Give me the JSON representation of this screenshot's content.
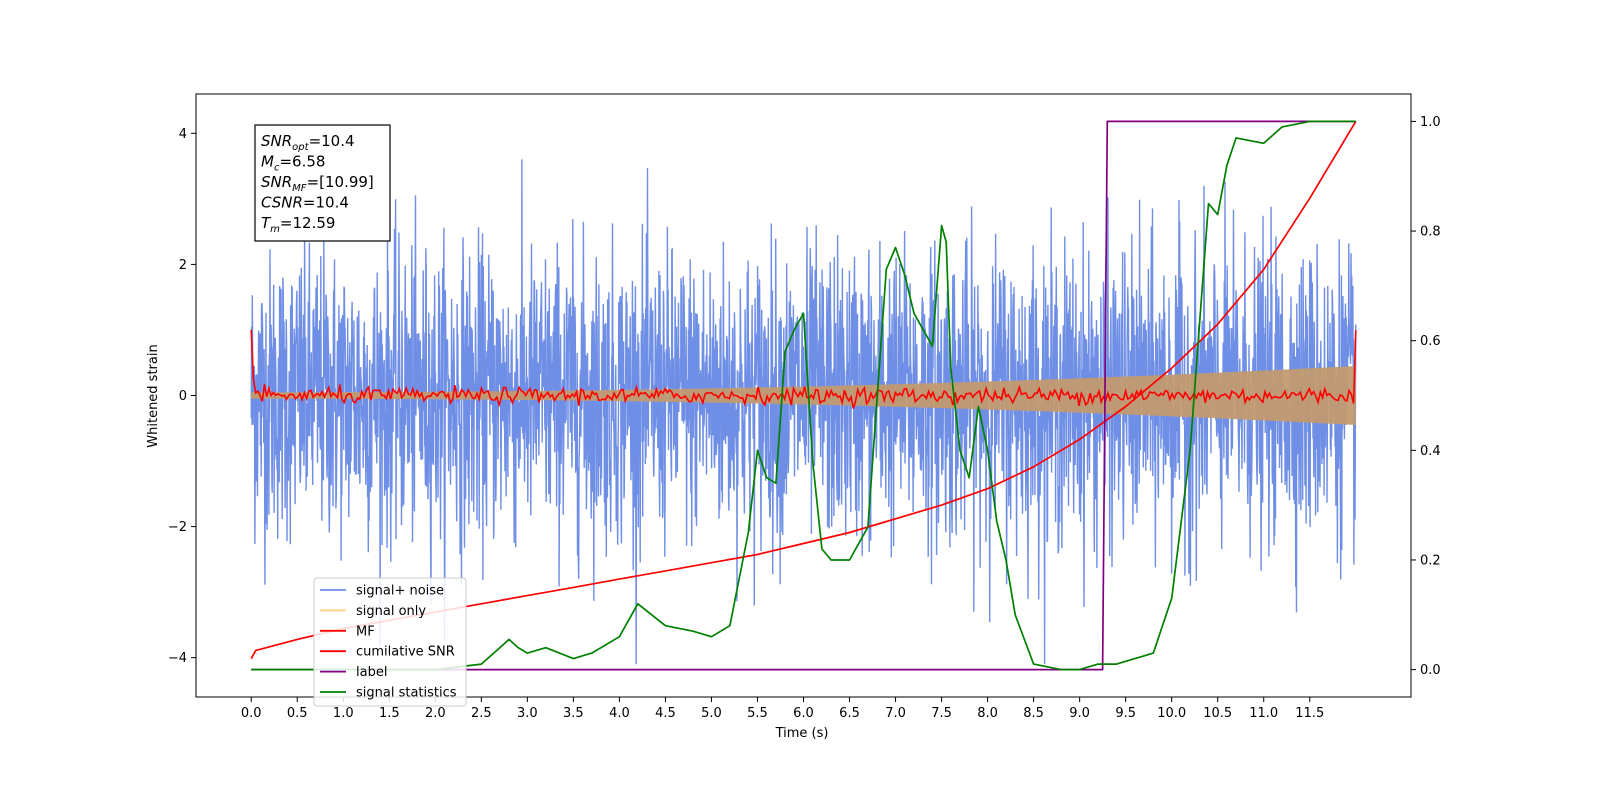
{
  "chart_data": {
    "type": "line",
    "xlabel": "Time (s)",
    "ylabel_left": "Whitened strain",
    "ylabel_right": "",
    "xlim": [
      -0.6,
      12.6
    ],
    "ylim_left": [
      -4.6,
      4.6
    ],
    "ylim_right": [
      -0.05,
      1.05
    ],
    "x_ticks": [
      "0.0",
      "0.5",
      "1.0",
      "1.5",
      "2.0",
      "2.5",
      "3.0",
      "3.5",
      "4.0",
      "4.5",
      "5.0",
      "5.5",
      "6.0",
      "6.5",
      "7.0",
      "7.5",
      "8.0",
      "8.5",
      "9.0",
      "9.5",
      "10.0",
      "10.5",
      "11.0",
      "11.5"
    ],
    "x_tick_values": [
      0,
      0.5,
      1,
      1.5,
      2,
      2.5,
      3,
      3.5,
      4,
      4.5,
      5,
      5.5,
      6,
      6.5,
      7,
      7.5,
      8,
      8.5,
      9,
      9.5,
      10,
      10.5,
      11,
      11.5
    ],
    "y_left_ticks": [
      "4",
      "2",
      "0",
      "−2",
      "−4"
    ],
    "y_left_tick_values": [
      4,
      2,
      0,
      -2,
      -4
    ],
    "y_right_ticks": [
      "1.0",
      "0.8",
      "0.6",
      "0.4",
      "0.2",
      "0.0"
    ],
    "y_right_tick_values": [
      1,
      0.8,
      0.6,
      0.4,
      0.2,
      0
    ],
    "grid": false,
    "legend_position": "lower-left",
    "series": [
      {
        "name": "signal+ noise",
        "color": "#6f8fe6",
        "axis": "left",
        "kind": "noise",
        "x_range": [
          0,
          12.0
        ],
        "amplitude_approx": 1.1
      },
      {
        "name": "signal only",
        "color": "#ffd27a",
        "axis": "left",
        "kind": "envelope",
        "x_range": [
          0,
          12.0
        ],
        "envelope_start": 0.05,
        "envelope_end": 0.45
      },
      {
        "name": "MF",
        "color": "#ff0000",
        "axis": "left",
        "kind": "noise-small",
        "x_range": [
          0,
          12.0
        ]
      },
      {
        "name": "cumilative SNR",
        "color": "#ff0000",
        "axis": "right",
        "x": [
          0,
          0.05,
          0.5,
          1,
          1.5,
          2,
          2.5,
          3,
          3.5,
          4,
          4.5,
          5,
          5.5,
          6,
          6.5,
          7,
          7.5,
          8,
          8.5,
          9,
          9.5,
          10,
          10.5,
          11,
          11.5,
          12
        ],
        "y": [
          0.02,
          0.035,
          0.055,
          0.075,
          0.09,
          0.105,
          0.12,
          0.135,
          0.15,
          0.165,
          0.18,
          0.195,
          0.21,
          0.23,
          0.25,
          0.275,
          0.3,
          0.33,
          0.37,
          0.42,
          0.48,
          0.55,
          0.63,
          0.73,
          0.86,
          1.0
        ]
      },
      {
        "name": "label",
        "color": "#800080",
        "axis": "right",
        "x": [
          0,
          9.25,
          9.3,
          12.0
        ],
        "y": [
          0,
          0,
          1,
          1
        ]
      },
      {
        "name": "signal statistics",
        "color": "#008000",
        "axis": "right",
        "x": [
          0,
          0.5,
          1,
          1.5,
          2,
          2.5,
          2.7,
          2.8,
          2.9,
          3,
          3.2,
          3.5,
          3.7,
          4,
          4.2,
          4.5,
          4.8,
          5,
          5.2,
          5.4,
          5.5,
          5.6,
          5.7,
          5.8,
          5.9,
          6,
          6.1,
          6.2,
          6.3,
          6.5,
          6.7,
          6.9,
          7,
          7.1,
          7.2,
          7.4,
          7.5,
          7.55,
          7.6,
          7.7,
          7.8,
          7.9,
          8,
          8.1,
          8.2,
          8.3,
          8.5,
          8.8,
          9,
          9.2,
          9.4,
          9.6,
          9.8,
          10,
          10.2,
          10.4,
          10.5,
          10.6,
          10.7,
          11,
          11.2,
          11.5,
          12
        ],
        "y": [
          0,
          0,
          0,
          0,
          0,
          0.01,
          0.04,
          0.055,
          0.04,
          0.03,
          0.04,
          0.02,
          0.03,
          0.06,
          0.12,
          0.08,
          0.07,
          0.06,
          0.08,
          0.25,
          0.4,
          0.35,
          0.34,
          0.58,
          0.62,
          0.65,
          0.38,
          0.22,
          0.2,
          0.2,
          0.26,
          0.73,
          0.77,
          0.72,
          0.65,
          0.59,
          0.81,
          0.78,
          0.55,
          0.4,
          0.35,
          0.48,
          0.4,
          0.27,
          0.2,
          0.1,
          0.01,
          0.0,
          0.0,
          0.01,
          0.01,
          0.02,
          0.03,
          0.13,
          0.4,
          0.85,
          0.83,
          0.92,
          0.97,
          0.96,
          0.99,
          1.0,
          1.0
        ]
      }
    ],
    "annotation": {
      "lines": [
        {
          "sym": "SNR",
          "sub": "opt",
          "val": "=10.4"
        },
        {
          "sym": "M",
          "sub": "c",
          "val": "=6.58"
        },
        {
          "sym": "SNR",
          "sub": "MF",
          "val": "=[10.99]"
        },
        {
          "sym": "CSNR",
          "sub": "",
          "val": "=10.4"
        },
        {
          "sym": "T",
          "sub": "m",
          "val": "=12.59"
        }
      ]
    }
  }
}
